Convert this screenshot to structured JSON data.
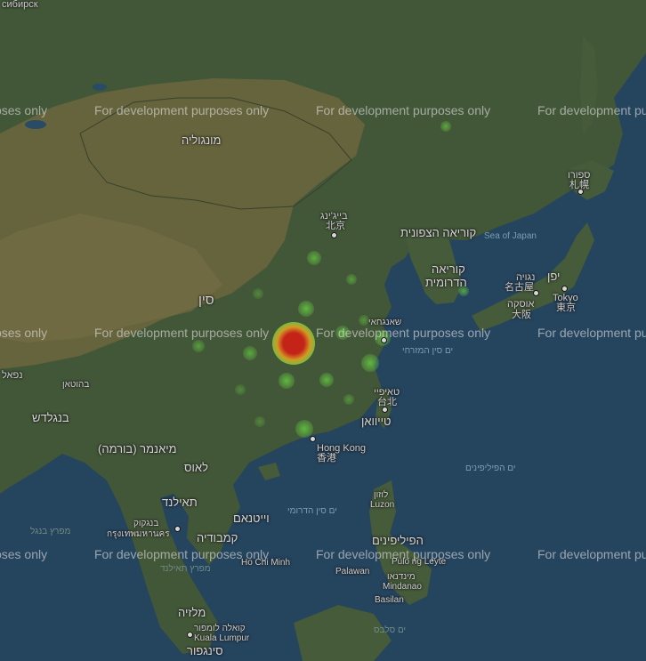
{
  "watermark": "For development purposes only",
  "colors": {
    "ocean": "#2b4e6b",
    "land": "#4c6340",
    "desert": "#7b7446",
    "heat_low": "#6fd84a",
    "heat_high": "#e02a1c"
  },
  "labels": {
    "top_left": "сибирск",
    "mongolia": "מונגוליה",
    "beijing_he": "בייג'ינג",
    "beijing_zh": "北京",
    "china": "סין",
    "north_korea": "קוריאה הצפונית",
    "sea_of_japan": "Sea of Japan",
    "south_korea_1": "קוריאה",
    "south_korea_2": "הדרומית",
    "sapporo_he": "ספורו",
    "sapporo_ja": "札幌",
    "nagoya_he": "נגויה",
    "nagoya_ja": "名古屋",
    "osaka_he": "אוסקה",
    "osaka_ja": "大阪",
    "japan": "יפן",
    "tokyo_en": "Tokyo",
    "tokyo_ja": "東京",
    "shanghai": "שאנגחאי",
    "east_china_sea": "ים סין המזרחי",
    "nepal": "נפאל",
    "bhutan": "בהוטאן",
    "bangladesh": "בנגלדש",
    "taipei_he": "טאיפיי",
    "taipei_zh": "台北",
    "taiwan": "טייוואן",
    "hong_kong_en": "Hong Kong",
    "hong_kong_zh": "香港",
    "myanmar": "מיאנמר (בורמה)",
    "laos": "לאוס",
    "philippine_sea": "ים הפיליפינים",
    "thailand": "תאילנד",
    "vietnam": "וייטנאם",
    "south_china_sea": "ים סין הדרומי",
    "luzon_he": "לוזון",
    "luzon_en": "Luzon",
    "bay_of_bengal": "מפרץ בנגל",
    "bangkok_he": "בנגקוק",
    "bangkok_th": "กรุงเทพมหานคร",
    "cambodia": "קמבודיה",
    "philippines": "הפיליפינים",
    "gulf_of_thailand": "מפרץ תאילנד",
    "ho_chi_minh": "Ho Chi Minh",
    "pulo_ng_leyte": "Pulo ng Leyte",
    "palawan": "Palawan",
    "mindanao_he": "מינדנאו",
    "mindanao_en": "Mindanao",
    "basilan": "Basilan",
    "malaysia": "מלזיה",
    "kuala_lumpur_he": "קואלה לומפור",
    "kuala_lumpur_en": "Kuala Lumpur",
    "sulu_sea": "ים סלבס",
    "singapore": "סינגפור"
  },
  "heatmap": [
    {
      "place": "Wuhan",
      "intensity": 1.0
    },
    {
      "place": "Beijing",
      "intensity": 0.2
    },
    {
      "place": "Shanghai",
      "intensity": 0.3
    },
    {
      "place": "Guangzhou",
      "intensity": 0.3
    },
    {
      "place": "Hangzhou",
      "intensity": 0.3
    },
    {
      "place": "Changsha",
      "intensity": 0.3
    },
    {
      "place": "Nanchang",
      "intensity": 0.3
    },
    {
      "place": "Zhengzhou",
      "intensity": 0.3
    },
    {
      "place": "Hefei",
      "intensity": 0.2
    },
    {
      "place": "Chongqing",
      "intensity": 0.2
    },
    {
      "place": "Chengdu",
      "intensity": 0.2
    },
    {
      "place": "Harbin",
      "intensity": 0.2
    },
    {
      "place": "Seoul",
      "intensity": 0.2
    },
    {
      "place": "Jinan",
      "intensity": 0.2
    },
    {
      "place": "Fuzhou",
      "intensity": 0.2
    },
    {
      "place": "Guiyang",
      "intensity": 0.15
    },
    {
      "place": "Nanning",
      "intensity": 0.15
    },
    {
      "place": "Nanjing",
      "intensity": 0.15
    },
    {
      "place": "Shijiazhuang",
      "intensity": 0.15
    }
  ]
}
